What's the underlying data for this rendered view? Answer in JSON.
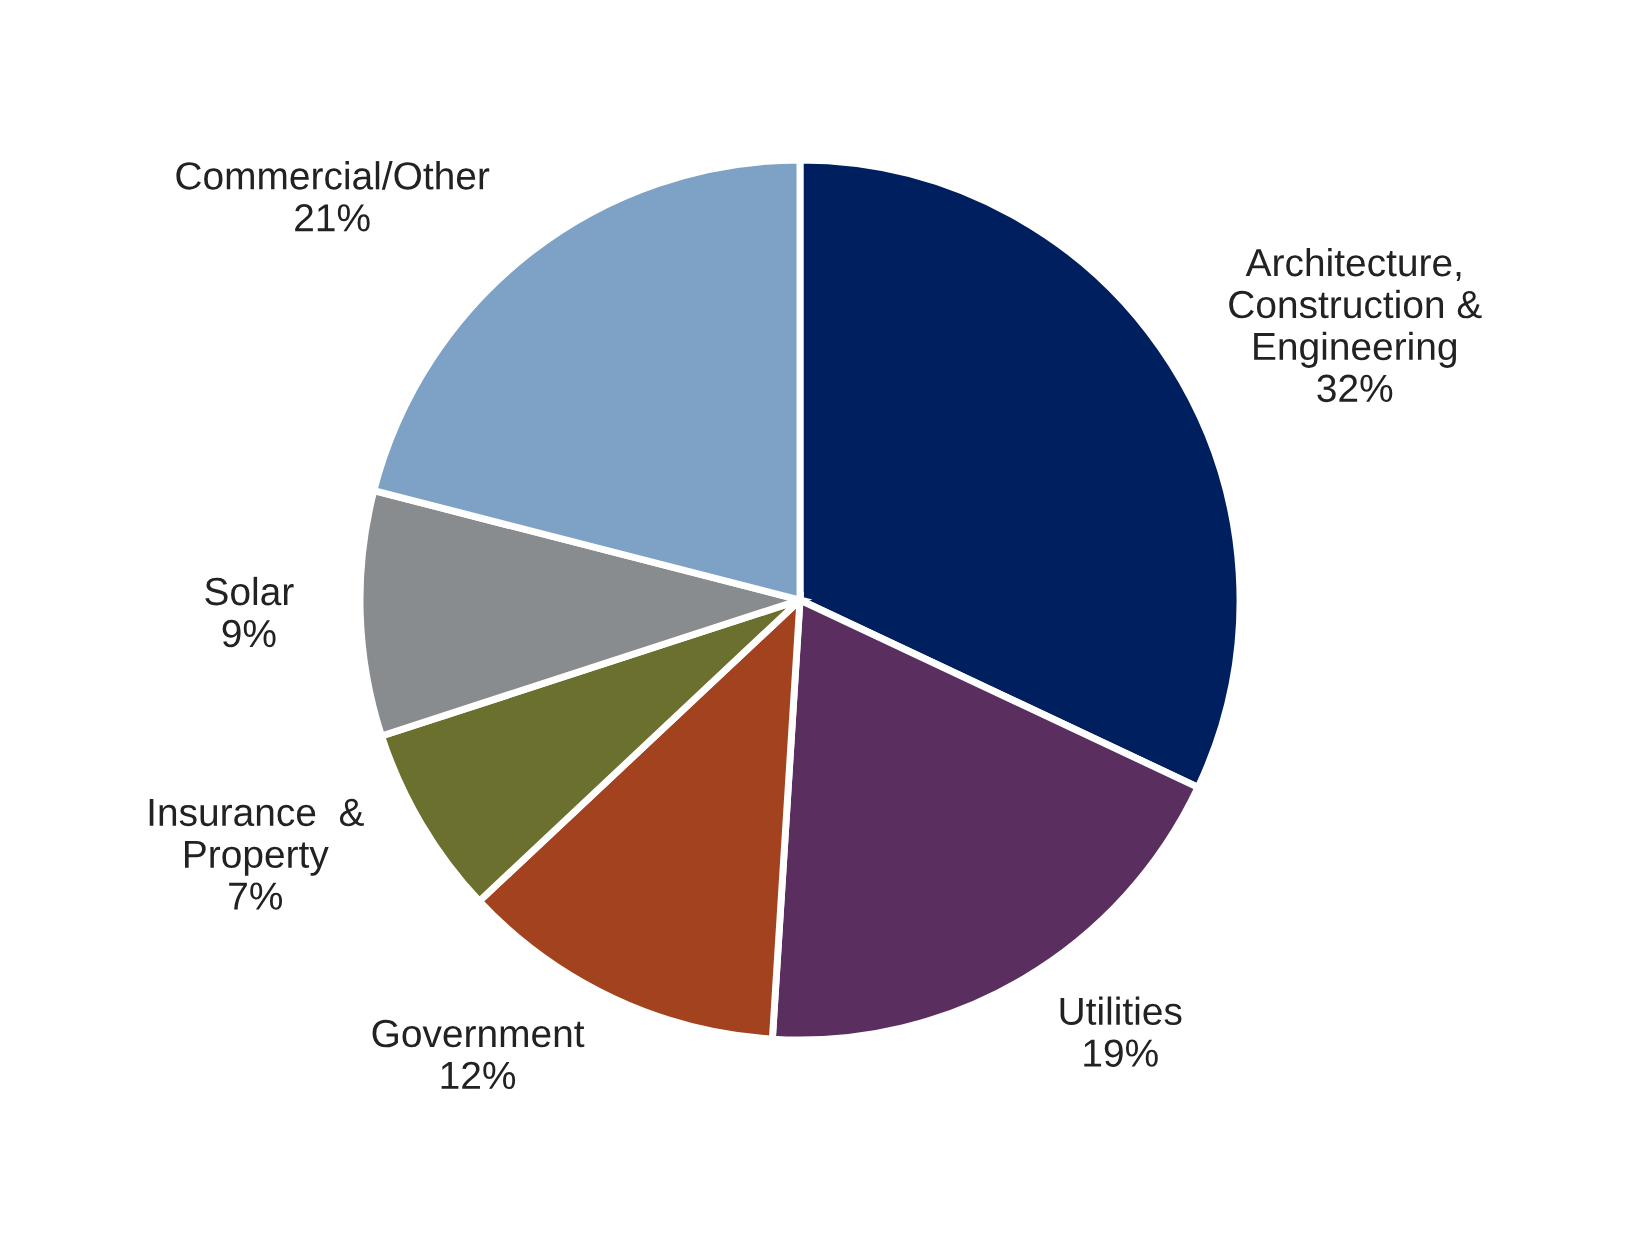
{
  "chart_data": {
    "type": "pie",
    "categories": [
      "Architecture,\nConstruction &\nEngineering",
      "Utilities",
      "Government",
      "Insurance  &\nProperty",
      "Solar",
      "Commercial/Other"
    ],
    "values": [
      32,
      19,
      12,
      7,
      9,
      21
    ],
    "value_labels": [
      "32%",
      "19%",
      "12%",
      "7%",
      "9%",
      "21%"
    ],
    "colors": [
      "#001f5f",
      "#5a2f5f",
      "#a3421e",
      "#6b702e",
      "#898c8e",
      "#7da2c6"
    ],
    "legend": false
  }
}
